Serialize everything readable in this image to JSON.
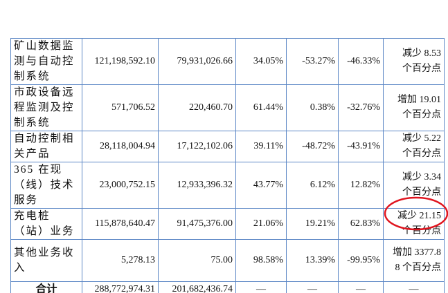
{
  "table": {
    "rows": [
      [
        "矿山数据监测与自动控制系统",
        "121,198,592.10",
        "79,931,026.66",
        "34.05%",
        "-53.27%",
        "-46.33%",
        "减少 8.53 个百分点"
      ],
      [
        "市政设备远程监测及控制系统",
        "571,706.52",
        "220,460.70",
        "61.44%",
        "0.38%",
        "-32.76%",
        "增加 19.01 个百分点"
      ],
      [
        "自动控制相关产品",
        "28,118,004.94",
        "17,122,102.06",
        "39.11%",
        "-48.72%",
        "-43.91%",
        "减少 5.22 个百分点"
      ],
      [
        "365 在现（线）技术服务",
        "23,000,752.15",
        "12,933,396.32",
        "43.77%",
        "6.12%",
        "12.82%",
        "减少 3.34 个百分点"
      ],
      [
        "充电桩（站）业务",
        "115,878,640.47",
        "91,475,376.00",
        "21.06%",
        "19.21%",
        "62.83%",
        "减少 21.15 个百分点"
      ],
      [
        "其他业务收入",
        "5,278.13",
        "75.00",
        "98.58%",
        "13.39%",
        "-99.95%",
        "增加 3377.88 个百分点"
      ],
      [
        "合计",
        "288,772,974.31",
        "201,682,436.74",
        "—",
        "—",
        "—",
        "—"
      ]
    ]
  }
}
